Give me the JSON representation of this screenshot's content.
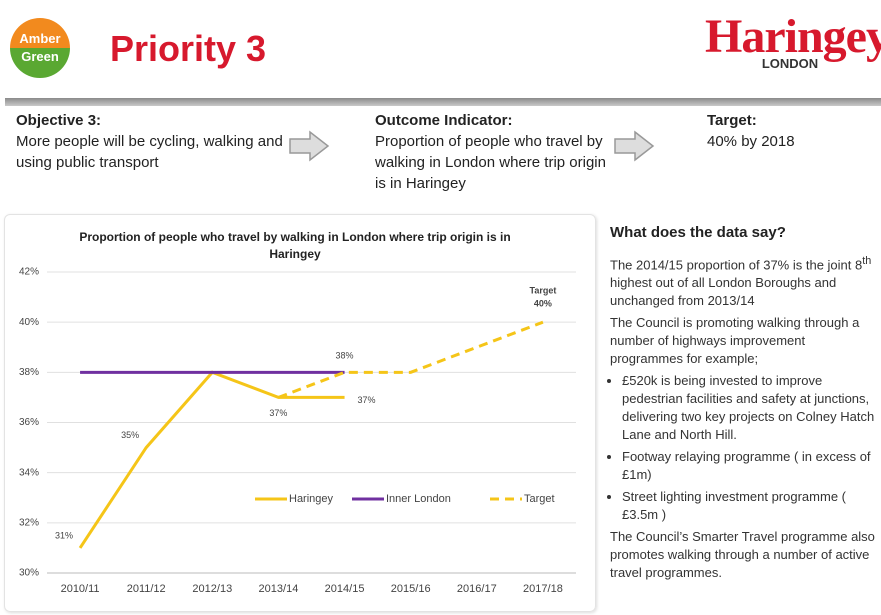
{
  "header": {
    "badge": [
      "Amber",
      "Green"
    ],
    "title": "Priority 3",
    "logo": {
      "name": "Haringey",
      "sub": "LONDON"
    }
  },
  "objective": {
    "heading": "Objective 3:",
    "text": "More people will be cycling, walking and using public transport"
  },
  "outcome": {
    "heading": "Outcome Indicator:",
    "text": "Proportion of people who travel by walking in London where trip origin is in Haringey"
  },
  "target": {
    "heading": "Target:",
    "text": "40% by 2018"
  },
  "chart_data": {
    "type": "line",
    "title": "Proportion of people who travel by walking in London where trip origin is in Haringey",
    "categories": [
      "2010/11",
      "2011/12",
      "2012/13",
      "2013/14",
      "2014/15",
      "2015/16",
      "2016/17",
      "2017/18"
    ],
    "series": [
      {
        "name": "Haringey",
        "color": "#f5c518",
        "dashed": false,
        "values": [
          31,
          35,
          38,
          37,
          37,
          null,
          null,
          null
        ],
        "value_labels": [
          "31%",
          "35%",
          null,
          "37%",
          "37%",
          null,
          null,
          null
        ]
      },
      {
        "name": "Inner London",
        "color": "#7030a0",
        "dashed": false,
        "values": [
          38,
          38,
          38,
          38,
          38,
          null,
          null,
          null
        ]
      },
      {
        "name": "Target",
        "color": "#f5c518",
        "dashed": true,
        "values": [
          null,
          null,
          null,
          37,
          38,
          38,
          39,
          40
        ],
        "value_labels": [
          null,
          null,
          null,
          null,
          "38%",
          null,
          null,
          "40%"
        ]
      }
    ],
    "annotations": [
      "Target"
    ],
    "ylim": [
      30,
      42
    ],
    "yticks": [
      {
        "value": 30,
        "label": "30%"
      },
      {
        "value": 32,
        "label": "32%"
      },
      {
        "value": 34,
        "label": "34%"
      },
      {
        "value": 36,
        "label": "36%"
      },
      {
        "value": 38,
        "label": "38%"
      },
      {
        "value": 40,
        "label": "40%"
      },
      {
        "value": 42,
        "label": "42%"
      }
    ],
    "grid": true,
    "legend": "bottom"
  },
  "side": {
    "heading": "What does the data say?",
    "p1": [
      "The 2014/15 proportion of 37% is the joint 8",
      "th",
      " highest out of all London Boroughs and unchanged from 2013/14"
    ],
    "p2": "The Council is promoting walking through a number of highways improvement programmes for example;",
    "bullets": [
      "£520k is being invested to  improve pedestrian facilities and safety at junctions, delivering two key projects on Colney Hatch Lane and North Hill.",
      "Footway relaying programme ( in excess of £1m)",
      "Street lighting investment programme ( £3.5m )"
    ],
    "p3": "The Council’s Smarter Travel programme also promotes walking through a number of active travel programmes."
  }
}
